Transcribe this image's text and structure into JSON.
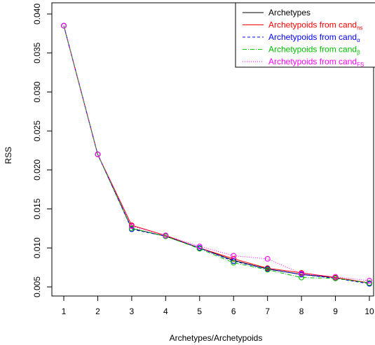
{
  "chart_data": {
    "type": "line",
    "xlabel": "Archetypes/Archetypoids",
    "ylabel": "RSS",
    "x": [
      1,
      2,
      3,
      4,
      5,
      6,
      7,
      8,
      9,
      10
    ],
    "xlim": [
      1,
      10
    ],
    "ylim": [
      0.004,
      0.041
    ],
    "x_ticks": [
      "1",
      "2",
      "3",
      "4",
      "5",
      "6",
      "7",
      "8",
      "9",
      "10"
    ],
    "y_ticks": [
      "0.005",
      "0.010",
      "0.015",
      "0.020",
      "0.025",
      "0.030",
      "0.035",
      "0.040"
    ],
    "y_tick_values": [
      0.005,
      0.01,
      0.015,
      0.02,
      0.025,
      0.03,
      0.035,
      0.04
    ],
    "grid": false,
    "legend_position": "top-right",
    "series": [
      {
        "name": "Archetypes",
        "name_main": "Archetypes",
        "name_sub": "",
        "color": "#000000",
        "dash": "",
        "markers": false,
        "values": [
          0.0385,
          0.022,
          0.0125,
          0.0115,
          0.01,
          0.0084,
          0.0073,
          0.0066,
          0.0062,
          0.0055
        ]
      },
      {
        "name": "Archetypoids from candns",
        "name_main": "Archetypoids from cand",
        "name_sub": "ns",
        "color": "#ff0000",
        "dash": "",
        "markers": true,
        "values": [
          0.0385,
          0.022,
          0.0129,
          0.0116,
          0.01,
          0.0086,
          0.0074,
          0.0068,
          0.0062,
          0.0055
        ]
      },
      {
        "name": "Archetypoids from candα",
        "name_main": "Archetypoids from cand",
        "name_sub": "α",
        "color": "#0000ff",
        "dash": "4,3",
        "markers": true,
        "values": [
          0.0385,
          0.022,
          0.0124,
          0.0115,
          0.01,
          0.0083,
          0.0073,
          0.0066,
          0.0061,
          0.0054
        ]
      },
      {
        "name": "Archetypoids from candβ",
        "name_main": "Archetypoids from cand",
        "name_sub": "β",
        "color": "#00c000",
        "dash": "6,2,1,2",
        "markers": true,
        "values": [
          0.0385,
          0.022,
          0.0125,
          0.0115,
          0.0099,
          0.0081,
          0.0072,
          0.0062,
          0.0061,
          0.0055
        ]
      },
      {
        "name": "Archetypoids from candFS",
        "name_main": "Archetypoids from cand",
        "name_sub": "FS",
        "color": "#ff00ff",
        "dash": "1,2",
        "markers": true,
        "values": [
          0.0385,
          0.022,
          0.0128,
          0.0116,
          0.0102,
          0.009,
          0.0086,
          0.0067,
          0.0063,
          0.0058
        ]
      }
    ]
  }
}
